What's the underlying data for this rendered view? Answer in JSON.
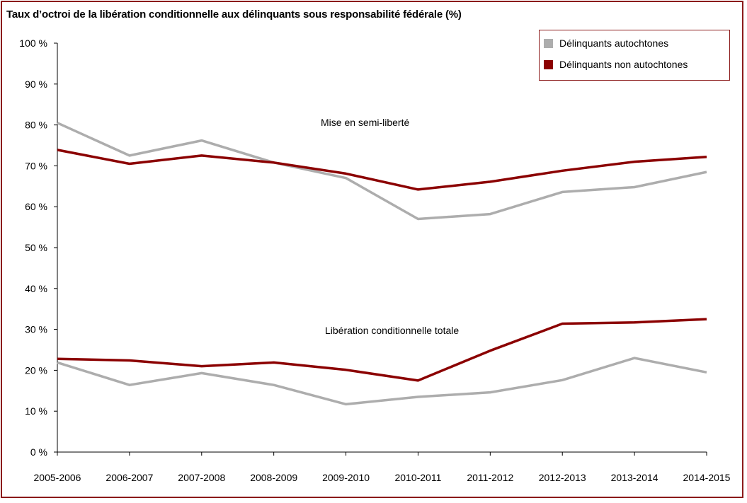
{
  "chart_data": {
    "type": "line",
    "title": "Taux d’octroi de la libération conditionnelle aux délinquants sous responsabilité fédérale (%)",
    "categories": [
      "2005-2006",
      "2006-2007",
      "2007-2008",
      "2008-2009",
      "2009-2010",
      "2010-2011",
      "2011-2012",
      "2012-2013",
      "2013-2014",
      "2014-2015"
    ],
    "ylim": [
      0,
      100
    ],
    "yticks": [
      0,
      10,
      20,
      30,
      40,
      50,
      60,
      70,
      80,
      90,
      100
    ],
    "ytick_labels": [
      "0 %",
      "10 %",
      "20 %",
      "30 %",
      "40 %",
      "50 %",
      "60 %",
      "70 %",
      "80 %",
      "90 %",
      "100 %"
    ],
    "grid": false,
    "legend_position": "top-right",
    "legend": [
      {
        "label": "Délinquants autochtones",
        "color": "#adadad"
      },
      {
        "label": "Délinquants non autochtones",
        "color": "#8b0000"
      }
    ],
    "annotations": {
      "semi_liberte": "Mise en semi-liberté",
      "totale": "Libération conditionnelle totale"
    },
    "series": [
      {
        "group": "semi_liberte",
        "legend_index": 0,
        "color": "#adadad",
        "values": [
          80.5,
          72.5,
          76.2,
          70.8,
          67.0,
          57.0,
          58.2,
          63.6,
          64.8,
          68.5
        ]
      },
      {
        "group": "semi_liberte",
        "legend_index": 1,
        "color": "#8b0000",
        "values": [
          73.9,
          70.5,
          72.5,
          70.8,
          68.1,
          64.2,
          66.1,
          68.8,
          71.0,
          72.2
        ]
      },
      {
        "group": "totale",
        "legend_index": 0,
        "color": "#adadad",
        "values": [
          21.9,
          16.4,
          19.3,
          16.4,
          11.7,
          13.5,
          14.6,
          17.6,
          23.0,
          19.5
        ]
      },
      {
        "group": "totale",
        "legend_index": 1,
        "color": "#8b0000",
        "values": [
          22.8,
          22.4,
          21.0,
          21.9,
          20.1,
          17.5,
          24.8,
          31.4,
          31.7,
          32.5
        ]
      }
    ]
  }
}
